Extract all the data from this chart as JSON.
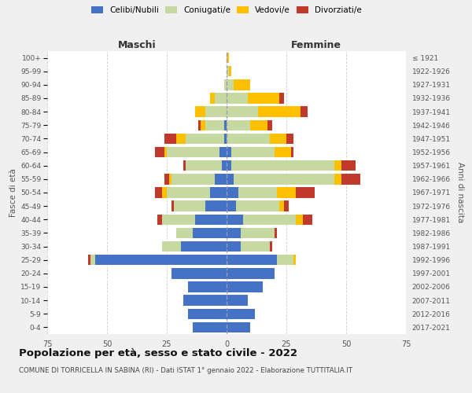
{
  "age_groups": [
    "0-4",
    "5-9",
    "10-14",
    "15-19",
    "20-24",
    "25-29",
    "30-34",
    "35-39",
    "40-44",
    "45-49",
    "50-54",
    "55-59",
    "60-64",
    "65-69",
    "70-74",
    "75-79",
    "80-84",
    "85-89",
    "90-94",
    "95-99",
    "100+"
  ],
  "birth_years": [
    "2017-2021",
    "2012-2016",
    "2007-2011",
    "2002-2006",
    "1997-2001",
    "1992-1996",
    "1987-1991",
    "1982-1986",
    "1977-1981",
    "1972-1976",
    "1967-1971",
    "1962-1966",
    "1957-1961",
    "1952-1956",
    "1947-1951",
    "1942-1946",
    "1937-1941",
    "1932-1936",
    "1927-1931",
    "1922-1926",
    "≤ 1921"
  ],
  "male": {
    "celibi": [
      14,
      16,
      18,
      16,
      23,
      55,
      19,
      14,
      13,
      9,
      7,
      5,
      2,
      3,
      1,
      1,
      0,
      0,
      0,
      0,
      0
    ],
    "coniugati": [
      0,
      0,
      0,
      0,
      0,
      2,
      8,
      7,
      14,
      13,
      18,
      18,
      15,
      22,
      16,
      8,
      9,
      5,
      1,
      0,
      0
    ],
    "vedovi": [
      0,
      0,
      0,
      0,
      0,
      0,
      0,
      0,
      0,
      0,
      2,
      1,
      0,
      1,
      4,
      2,
      4,
      2,
      0,
      0,
      0
    ],
    "divorziati": [
      0,
      0,
      0,
      0,
      0,
      1,
      0,
      0,
      2,
      1,
      3,
      2,
      1,
      4,
      5,
      1,
      0,
      0,
      0,
      0,
      0
    ]
  },
  "female": {
    "nubili": [
      10,
      12,
      9,
      15,
      20,
      21,
      6,
      6,
      7,
      4,
      5,
      3,
      2,
      2,
      0,
      0,
      0,
      0,
      0,
      0,
      0
    ],
    "coniugate": [
      0,
      0,
      0,
      0,
      0,
      7,
      12,
      14,
      22,
      18,
      16,
      42,
      43,
      18,
      18,
      10,
      13,
      9,
      3,
      1,
      0
    ],
    "vedove": [
      0,
      0,
      0,
      0,
      0,
      1,
      0,
      0,
      3,
      2,
      8,
      3,
      3,
      7,
      7,
      7,
      18,
      13,
      7,
      1,
      1
    ],
    "divorziate": [
      0,
      0,
      0,
      0,
      0,
      0,
      1,
      1,
      4,
      2,
      8,
      8,
      6,
      1,
      3,
      2,
      3,
      2,
      0,
      0,
      0
    ]
  },
  "colors": {
    "celibi_nubili": "#4472c4",
    "coniugati": "#c5d9a0",
    "vedovi": "#ffc000",
    "divorziati": "#c0392b"
  },
  "title": "Popolazione per età, sesso e stato civile - 2022",
  "subtitle": "COMUNE DI TORRICELLA IN SABINA (RI) - Dati ISTAT 1° gennaio 2022 - Elaborazione TUTTITALIA.IT",
  "xlabel_left": "Maschi",
  "xlabel_right": "Femmine",
  "ylabel_left": "Fasce di età",
  "ylabel_right": "Anni di nascita",
  "xlim": 75,
  "background_color": "#f0f0f0",
  "plot_bg": "#ffffff",
  "legend_labels": [
    "Celibi/Nubili",
    "Coniugati/e",
    "Vedovi/e",
    "Divorziati/e"
  ]
}
